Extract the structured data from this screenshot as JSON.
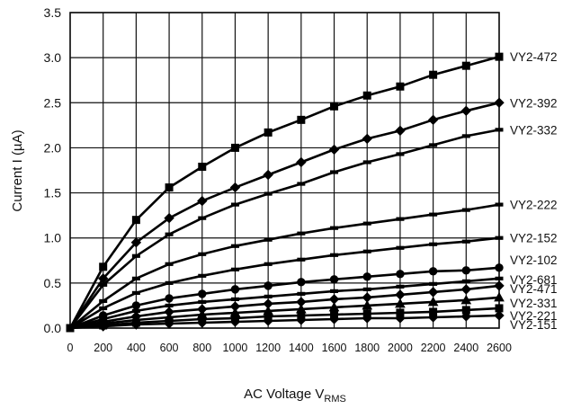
{
  "chart_data": {
    "type": "line",
    "xlabel": "AC Voltage V",
    "xlabel_sub": "RMS",
    "ylabel": "Current I (µA)",
    "xlim": [
      0,
      2600
    ],
    "ylim": [
      0,
      3.5
    ],
    "xticks": [
      "0",
      "200",
      "400",
      "600",
      "800",
      "1000",
      "1200",
      "1400",
      "1600",
      "1800",
      "2000",
      "2200",
      "2400",
      "2600"
    ],
    "yticks": [
      "0.0",
      "0.5",
      "1.0",
      "1.5",
      "2.0",
      "2.5",
      "3.0",
      "3.5"
    ],
    "grid": true,
    "legend": "labels at right end of each line",
    "line_color": "#000000",
    "series": [
      {
        "name": "VY2-472",
        "marker": "square",
        "x": [
          0,
          200,
          400,
          600,
          800,
          1000,
          1200,
          1400,
          1600,
          1800,
          2000,
          2200,
          2400,
          2600
        ],
        "y": [
          0,
          0.68,
          1.2,
          1.56,
          1.79,
          2.0,
          2.17,
          2.31,
          2.46,
          2.58,
          2.68,
          2.81,
          2.91,
          3.01
        ]
      },
      {
        "name": "VY2-392",
        "marker": "diamond",
        "x": [
          0,
          200,
          400,
          600,
          800,
          1000,
          1200,
          1400,
          1600,
          1800,
          2000,
          2200,
          2400,
          2600
        ],
        "y": [
          0,
          0.55,
          0.95,
          1.22,
          1.41,
          1.56,
          1.7,
          1.84,
          1.98,
          2.1,
          2.19,
          2.31,
          2.41,
          2.5
        ]
      },
      {
        "name": "VY2-332",
        "marker": "dash",
        "x": [
          0,
          200,
          400,
          600,
          800,
          1000,
          1200,
          1400,
          1600,
          1800,
          2000,
          2200,
          2400,
          2600
        ],
        "y": [
          0,
          0.48,
          0.8,
          1.04,
          1.22,
          1.37,
          1.49,
          1.6,
          1.73,
          1.84,
          1.93,
          2.03,
          2.13,
          2.2
        ]
      },
      {
        "name": "VY2-222",
        "marker": "dash",
        "x": [
          0,
          200,
          400,
          600,
          800,
          1000,
          1200,
          1400,
          1600,
          1800,
          2000,
          2200,
          2400,
          2600
        ],
        "y": [
          0,
          0.3,
          0.55,
          0.71,
          0.82,
          0.91,
          0.98,
          1.05,
          1.11,
          1.16,
          1.21,
          1.26,
          1.31,
          1.37
        ]
      },
      {
        "name": "VY2-152",
        "marker": "dash",
        "x": [
          0,
          200,
          400,
          600,
          800,
          1000,
          1200,
          1400,
          1600,
          1800,
          2000,
          2200,
          2400,
          2600
        ],
        "y": [
          0,
          0.22,
          0.39,
          0.5,
          0.58,
          0.65,
          0.71,
          0.76,
          0.81,
          0.85,
          0.89,
          0.93,
          0.96,
          1.0
        ]
      },
      {
        "name": "VY2-102",
        "marker": "circle",
        "x": [
          0,
          200,
          400,
          600,
          800,
          1000,
          1200,
          1400,
          1600,
          1800,
          2000,
          2200,
          2400,
          2600
        ],
        "y": [
          0,
          0.14,
          0.25,
          0.33,
          0.38,
          0.43,
          0.47,
          0.51,
          0.54,
          0.57,
          0.6,
          0.63,
          0.64,
          0.67
        ]
      },
      {
        "name": "VY2-681",
        "marker": "dash",
        "x": [
          0,
          200,
          400,
          600,
          800,
          1000,
          1200,
          1400,
          1600,
          1800,
          2000,
          2200,
          2400,
          2600
        ],
        "y": [
          0,
          0.1,
          0.19,
          0.25,
          0.29,
          0.32,
          0.35,
          0.38,
          0.41,
          0.43,
          0.46,
          0.49,
          0.52,
          0.55
        ]
      },
      {
        "name": "VY2-471",
        "marker": "diamond",
        "x": [
          0,
          200,
          400,
          600,
          800,
          1000,
          1200,
          1400,
          1600,
          1800,
          2000,
          2200,
          2400,
          2600
        ],
        "y": [
          0,
          0.07,
          0.13,
          0.18,
          0.21,
          0.24,
          0.27,
          0.29,
          0.32,
          0.34,
          0.37,
          0.4,
          0.43,
          0.47
        ]
      },
      {
        "name": "VY2-331",
        "marker": "triangle",
        "x": [
          0,
          200,
          400,
          600,
          800,
          1000,
          1200,
          1400,
          1600,
          1800,
          2000,
          2200,
          2400,
          2600
        ],
        "y": [
          0,
          0.05,
          0.09,
          0.12,
          0.15,
          0.17,
          0.19,
          0.21,
          0.23,
          0.25,
          0.27,
          0.29,
          0.31,
          0.34
        ]
      },
      {
        "name": "VY2-221",
        "marker": "square",
        "x": [
          0,
          200,
          400,
          600,
          800,
          1000,
          1200,
          1400,
          1600,
          1800,
          2000,
          2200,
          2400,
          2600
        ],
        "y": [
          0,
          0.03,
          0.06,
          0.08,
          0.1,
          0.11,
          0.13,
          0.14,
          0.15,
          0.16,
          0.17,
          0.18,
          0.2,
          0.22
        ]
      },
      {
        "name": "VY2-151",
        "marker": "diamond",
        "x": [
          0,
          200,
          400,
          600,
          800,
          1000,
          1200,
          1400,
          1600,
          1800,
          2000,
          2200,
          2400,
          2600
        ],
        "y": [
          0,
          0.02,
          0.04,
          0.05,
          0.06,
          0.07,
          0.08,
          0.09,
          0.1,
          0.11,
          0.11,
          0.12,
          0.13,
          0.14
        ]
      }
    ]
  }
}
